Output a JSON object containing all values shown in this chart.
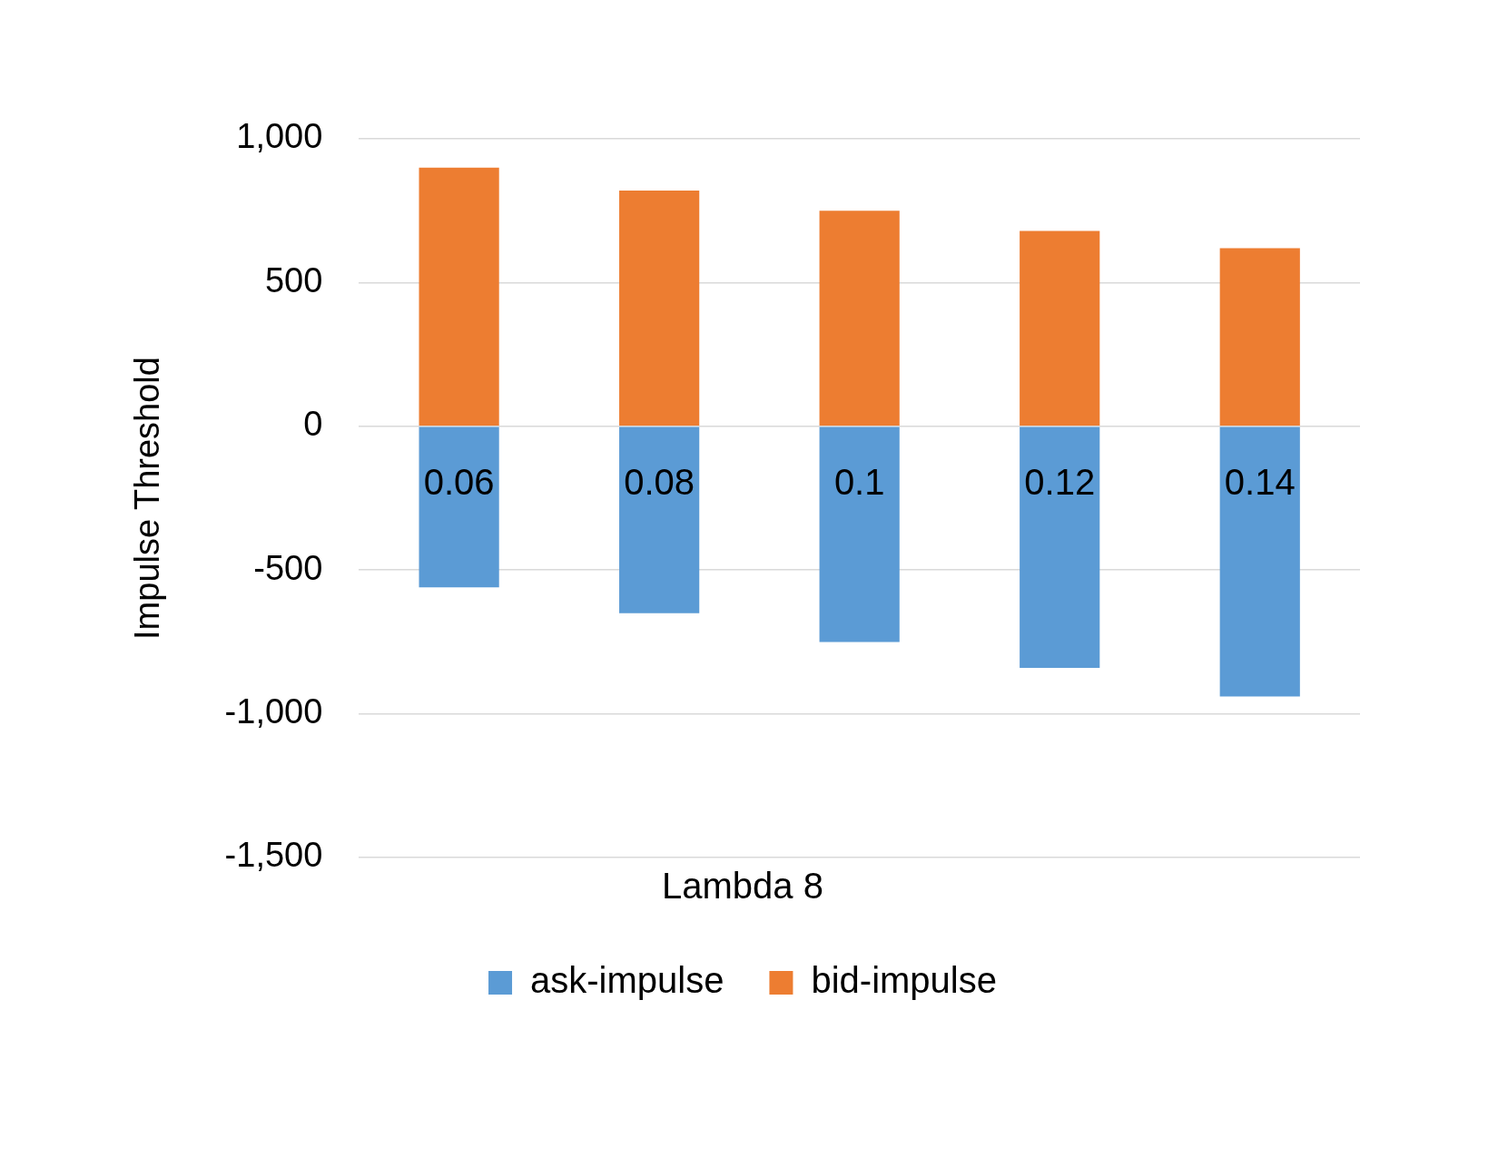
{
  "chart_data": {
    "type": "bar",
    "xlabel": "Lambda 8",
    "ylabel": "Impulse Threshold",
    "categories": [
      "0.06",
      "0.08",
      "0.1",
      "0.12",
      "0.14"
    ],
    "series": [
      {
        "name": "ask-impulse",
        "color": "#5b9bd5",
        "values": [
          -560,
          -650,
          -750,
          -840,
          -940
        ]
      },
      {
        "name": "bid-impulse",
        "color": "#ed7d31",
        "values": [
          900,
          820,
          750,
          680,
          620
        ]
      }
    ],
    "stacked": true,
    "ylim": [
      -1500,
      1000
    ],
    "yticks": [
      {
        "value": -1500,
        "label": "-1,500"
      },
      {
        "value": -1000,
        "label": "-1,000"
      },
      {
        "value": -500,
        "label": "-500"
      },
      0,
      500,
      {
        "value": 1000,
        "label": "1,000"
      }
    ],
    "grid": "y",
    "legend": "bottom"
  }
}
